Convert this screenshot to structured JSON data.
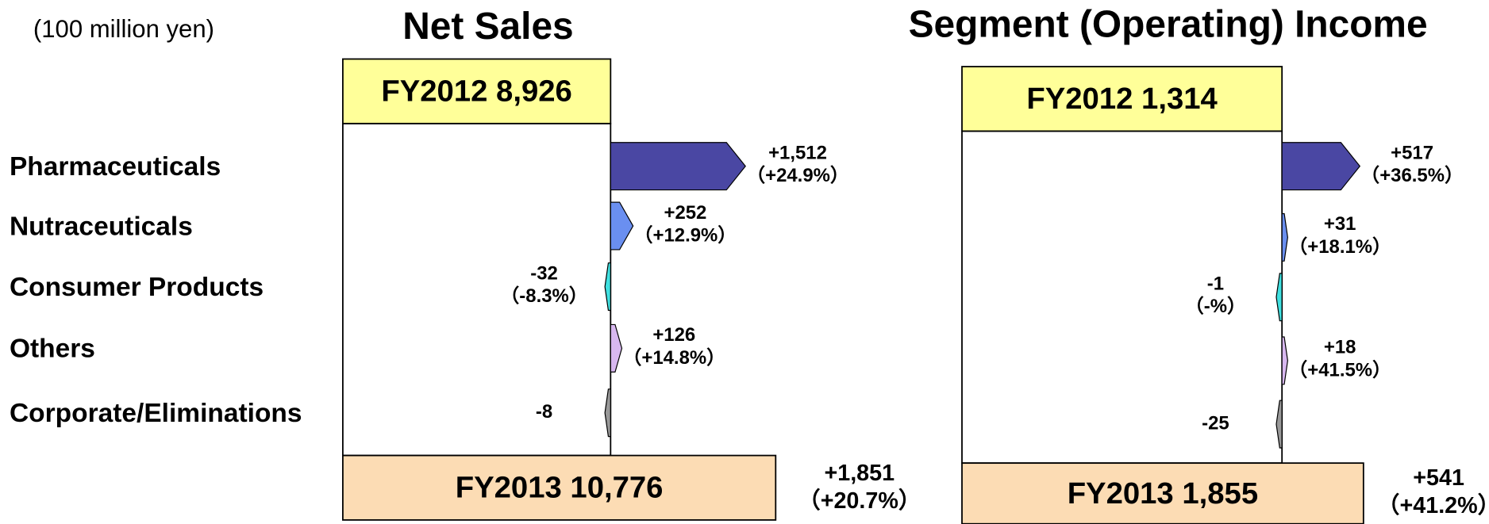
{
  "chart_data": [
    {
      "type": "waterfall",
      "title": "Net Sales",
      "unit": "(100 million yen)",
      "start": {
        "label": "FY2012",
        "value": 8926,
        "value_label": "8,926"
      },
      "end": {
        "label": "FY2013",
        "value": 10776,
        "value_label": "10,776"
      },
      "change": {
        "value": 1851,
        "value_label": "+1,851",
        "percent_label": "（+20.7%）"
      },
      "categories": [
        "Pharmaceuticals",
        "Nutraceuticals",
        "Consumer Products",
        "Others",
        "Corporate/Eliminations"
      ],
      "values": [
        1512,
        252,
        -32,
        126,
        -8
      ],
      "value_labels": [
        "+1,512",
        "+252",
        "-32",
        "+126",
        "-8"
      ],
      "percent_labels": [
        "（+24.9%）",
        "（+12.9%）",
        "（-8.3%）",
        "（+14.8%）",
        null
      ],
      "colors": [
        "#4a47a3",
        "#6a8ff0",
        "#40e0e0",
        "#d8b8f0",
        "#999999"
      ],
      "start_color": "#ffff99",
      "end_color": "#fcdcb4"
    },
    {
      "type": "waterfall",
      "title": "Segment (Operating) Income",
      "start": {
        "label": "FY2012",
        "value": 1314,
        "value_label": "1,314"
      },
      "end": {
        "label": "FY2013",
        "value": 1855,
        "value_label": "1,855"
      },
      "change": {
        "value": 541,
        "value_label": "+541",
        "percent_label": "（+41.2%）"
      },
      "values": [
        517,
        31,
        -1,
        18,
        -25
      ],
      "value_labels": [
        "+517",
        "+31",
        "-1",
        "+18",
        "-25"
      ],
      "percent_labels": [
        "（+36.5%）",
        "（+18.1%）",
        "（-%）",
        "（+41.5%）",
        null
      ],
      "colors": [
        "#4a47a3",
        "#6a8ff0",
        "#40e0e0",
        "#d8b8f0",
        "#999999"
      ],
      "start_color": "#ffff99",
      "end_color": "#fcdcb4"
    }
  ]
}
